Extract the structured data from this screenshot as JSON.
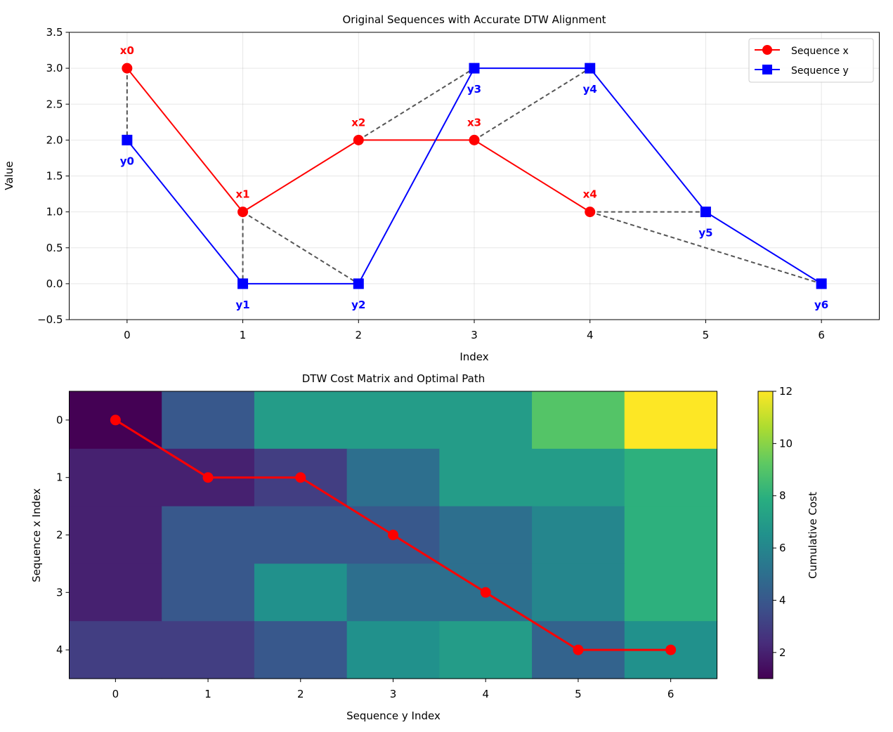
{
  "chart_data": [
    {
      "type": "line",
      "title": "Original Sequences with Accurate DTW Alignment",
      "xlabel": "Index",
      "ylabel": "Value",
      "xlim": [
        -0.5,
        6.5
      ],
      "ylim": [
        -0.5,
        3.5
      ],
      "xticks": [
        "0",
        "1",
        "2",
        "3",
        "4",
        "5",
        "6"
      ],
      "yticks": [
        "−0.5",
        "0.0",
        "0.5",
        "1.0",
        "1.5",
        "2.0",
        "2.5",
        "3.0",
        "3.5"
      ],
      "grid": true,
      "legend_position": "top-right",
      "series": [
        {
          "name": "Sequence x",
          "color": "#ff0000",
          "marker": "circle",
          "x": [
            0,
            1,
            2,
            3,
            4
          ],
          "y": [
            3,
            1,
            2,
            2,
            1
          ],
          "point_labels": [
            "x0",
            "x1",
            "x2",
            "x3",
            "x4"
          ]
        },
        {
          "name": "Sequence y",
          "color": "#0000ff",
          "marker": "square",
          "x": [
            0,
            1,
            2,
            3,
            4,
            5,
            6
          ],
          "y": [
            2,
            0,
            0,
            3,
            3,
            1,
            0
          ],
          "point_labels": [
            "y0",
            "y1",
            "y2",
            "y3",
            "y4",
            "y5",
            "y6"
          ]
        }
      ],
      "alignment_pairs": [
        [
          0,
          0
        ],
        [
          1,
          1
        ],
        [
          1,
          2
        ],
        [
          2,
          3
        ],
        [
          3,
          4
        ],
        [
          4,
          5
        ],
        [
          4,
          6
        ]
      ],
      "alignment_color": "#555555"
    },
    {
      "type": "heatmap",
      "title": "DTW Cost Matrix and Optimal Path",
      "xlabel": "Sequence y Index",
      "ylabel": "Sequence x Index",
      "xticks": [
        "0",
        "1",
        "2",
        "3",
        "4",
        "5",
        "6"
      ],
      "yticks": [
        "0",
        "1",
        "2",
        "3",
        "4"
      ],
      "colormap": "viridis",
      "colorbar_label": "Cumulative Cost",
      "colorbar_range": [
        1,
        12
      ],
      "colorbar_ticks": [
        "2",
        "4",
        "6",
        "8",
        "10",
        "12"
      ],
      "matrix": [
        [
          1,
          4,
          7,
          7,
          7,
          9,
          12
        ],
        [
          2,
          2,
          3,
          5,
          7,
          7,
          8
        ],
        [
          2,
          4,
          4,
          4,
          5,
          6,
          8
        ],
        [
          2,
          4,
          6.5,
          5,
          5,
          6,
          8
        ],
        [
          3,
          3,
          4,
          6.5,
          7,
          4.5,
          6.5
        ]
      ],
      "path": [
        [
          0,
          0
        ],
        [
          1,
          1
        ],
        [
          1,
          2
        ],
        [
          2,
          3
        ],
        [
          3,
          4
        ],
        [
          4,
          5
        ],
        [
          4,
          6
        ]
      ],
      "path_color": "#ff0000"
    }
  ]
}
